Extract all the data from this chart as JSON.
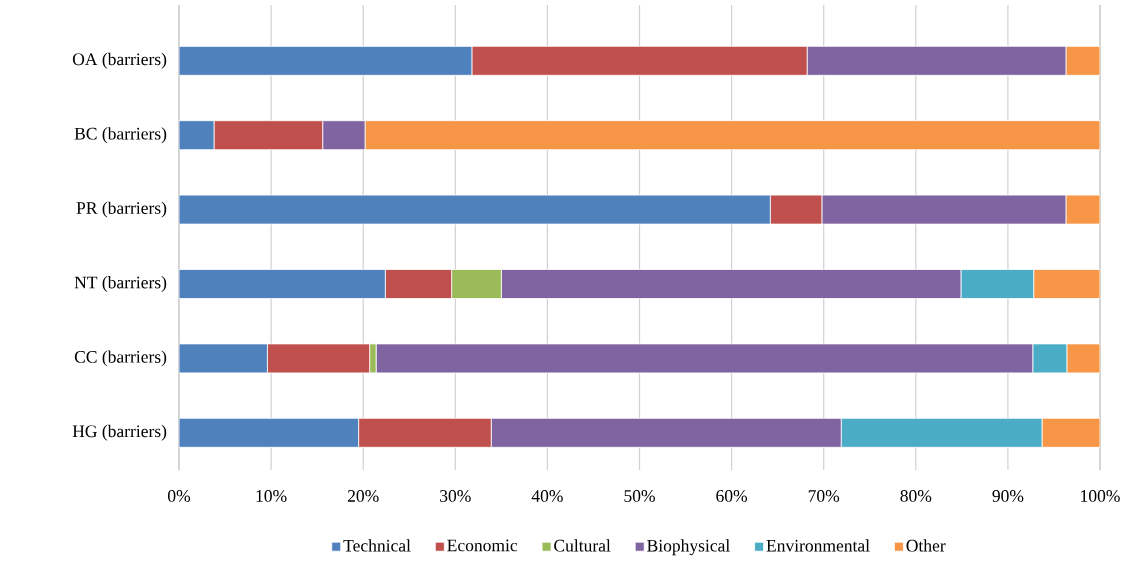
{
  "chart_data": {
    "type": "bar",
    "orientation": "horizontal",
    "stacked": true,
    "categories": [
      "OA (barriers)",
      "BC (barriers)",
      "PR (barriers)",
      "NT (barriers)",
      "CC (barriers)",
      "HG (barriers)"
    ],
    "series": [
      {
        "name": "Technical",
        "color": "#4f81bd",
        "values": [
          31.8,
          3.8,
          64.2,
          22.4,
          9.6,
          19.5
        ]
      },
      {
        "name": "Economic",
        "color": "#c0504d",
        "values": [
          36.4,
          11.8,
          5.6,
          7.2,
          11.1,
          14.4
        ]
      },
      {
        "name": "Cultural",
        "color": "#9bbb59",
        "values": [
          null,
          null,
          null,
          5.4,
          0.7,
          null
        ]
      },
      {
        "name": "Biophysical",
        "color": "#8064a2",
        "values": [
          28.1,
          4.6,
          26.5,
          49.9,
          71.3,
          38.0
        ]
      },
      {
        "name": "Environmental",
        "color": "#4bacc6",
        "values": [
          null,
          null,
          null,
          7.9,
          3.7,
          21.8
        ]
      },
      {
        "name": "Other",
        "color": "#f79646",
        "values": [
          3.7,
          79.8,
          3.7,
          7.2,
          3.6,
          6.3
        ]
      }
    ],
    "xlim": [
      0,
      100
    ],
    "xticks": [
      {
        "value": 0,
        "label": "0%"
      },
      {
        "value": 10,
        "label": "10%"
      },
      {
        "value": 20,
        "label": "20%"
      },
      {
        "value": 30,
        "label": "30%"
      },
      {
        "value": 40,
        "label": "40%"
      },
      {
        "value": 50,
        "label": "50%"
      },
      {
        "value": 60,
        "label": "60%"
      },
      {
        "value": 70,
        "label": "70%"
      },
      {
        "value": 80,
        "label": "80%"
      },
      {
        "value": 90,
        "label": "90%"
      },
      {
        "value": 100,
        "label": "100%"
      }
    ],
    "grid": "x",
    "legend": "bottom"
  }
}
